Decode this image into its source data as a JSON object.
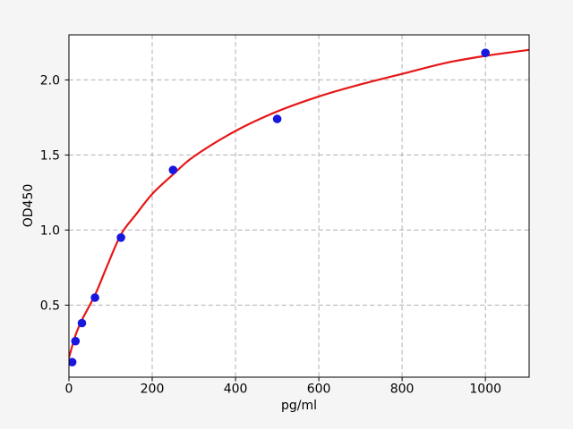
{
  "chart_data": {
    "type": "scatter",
    "title": "",
    "xlabel": "pg/ml",
    "ylabel": "OD450",
    "xlim": [
      0,
      1105
    ],
    "ylim": [
      0.02,
      2.3
    ],
    "x_ticks": [
      0,
      200,
      400,
      600,
      800,
      1000
    ],
    "x_tick_labels": [
      "0",
      "200",
      "400",
      "600",
      "800",
      "1000"
    ],
    "y_ticks": [
      0.5,
      1.0,
      1.5,
      2.0
    ],
    "y_tick_labels": [
      "0.5",
      "1.0",
      "1.5",
      "2.0"
    ],
    "grid": {
      "visible": true,
      "style": "dashed",
      "color": "#b0b0b0"
    },
    "legend": "none",
    "style": {
      "figure_background": "#f5f5f5",
      "plot_background": "#ffffff",
      "spine_color": "#000000",
      "tick_color": "#000000",
      "point_color": "#1717e0",
      "curve_color": "#e61717"
    },
    "series": [
      {
        "name": "standard-points",
        "type": "scatter",
        "marker": "circle",
        "color": "#1717e0",
        "points": [
          [
            7.8,
            0.12
          ],
          [
            15.6,
            0.26
          ],
          [
            31.25,
            0.38
          ],
          [
            62.5,
            0.55
          ],
          [
            125,
            0.95
          ],
          [
            250,
            1.4
          ],
          [
            500,
            1.74
          ],
          [
            1000,
            2.18
          ]
        ]
      },
      {
        "name": "fit-curve",
        "type": "line",
        "color": "#e61717",
        "points": [
          [
            0,
            0.15
          ],
          [
            16,
            0.3
          ],
          [
            31,
            0.4
          ],
          [
            63,
            0.57
          ],
          [
            90,
            0.75
          ],
          [
            125,
            0.97
          ],
          [
            160,
            1.1
          ],
          [
            200,
            1.24
          ],
          [
            250,
            1.37
          ],
          [
            300,
            1.49
          ],
          [
            400,
            1.66
          ],
          [
            500,
            1.79
          ],
          [
            600,
            1.89
          ],
          [
            700,
            1.97
          ],
          [
            800,
            2.04
          ],
          [
            900,
            2.11
          ],
          [
            1000,
            2.16
          ],
          [
            1105,
            2.2
          ]
        ]
      }
    ]
  }
}
